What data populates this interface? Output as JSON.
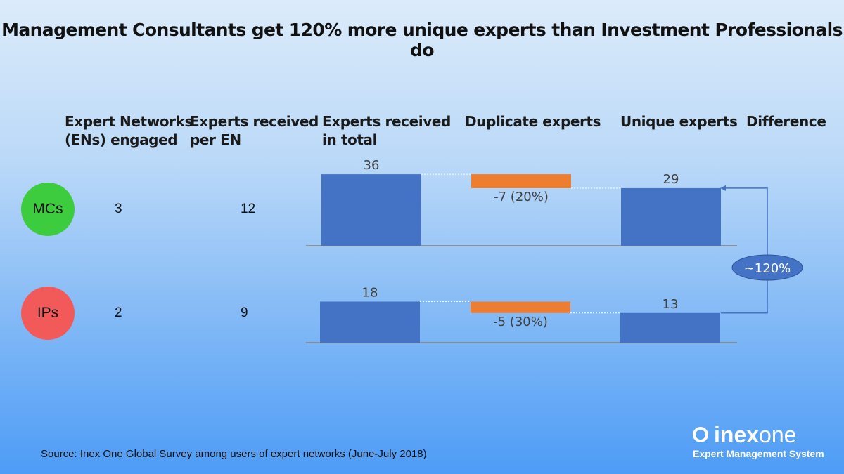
{
  "title": "Management Consultants get 120% more unique experts than Investment Professionals do",
  "headers": [
    "Expert Networks (ENs) engaged",
    "Experts received per EN",
    "Experts received in total",
    "Duplicate experts",
    "Unique experts",
    "Difference"
  ],
  "headers_lines": [
    [
      "Expert Networks",
      "(ENs) engaged"
    ],
    [
      "Experts received",
      "per EN"
    ],
    [
      "Experts received",
      "in total"
    ],
    [
      "Duplicate experts"
    ],
    [
      "Unique experts"
    ],
    [
      "Difference"
    ]
  ],
  "rows": [
    {
      "label": "MCs",
      "color": "#3dcc3d",
      "ens": "3",
      "per_en": "12"
    },
    {
      "label": "IPs",
      "color": "#f25a5a",
      "ens": "2",
      "per_en": "9"
    }
  ],
  "chart_data": [
    {
      "type": "bar",
      "subtype": "waterfall",
      "group": "MCs",
      "categories": [
        "Experts received in total",
        "Duplicate experts",
        "Unique experts"
      ],
      "values": [
        36,
        -7,
        29
      ],
      "labels": [
        "36",
        "-7 (20%)",
        "29"
      ]
    },
    {
      "type": "bar",
      "subtype": "waterfall",
      "group": "IPs",
      "categories": [
        "Experts received in total",
        "Duplicate experts",
        "Unique experts"
      ],
      "values": [
        18,
        -5,
        13
      ],
      "labels": [
        "18",
        "-5 (30%)",
        "13"
      ]
    }
  ],
  "difference_label": "~120%",
  "colors": {
    "total": "#4472c4",
    "duplicate": "#ed7d31"
  },
  "source": "Source:  Inex One Global Survey among users of expert networks (June-July 2018)",
  "logo": {
    "name_bold": "inex",
    "name_light": "one",
    "tagline": "Expert Management System"
  }
}
